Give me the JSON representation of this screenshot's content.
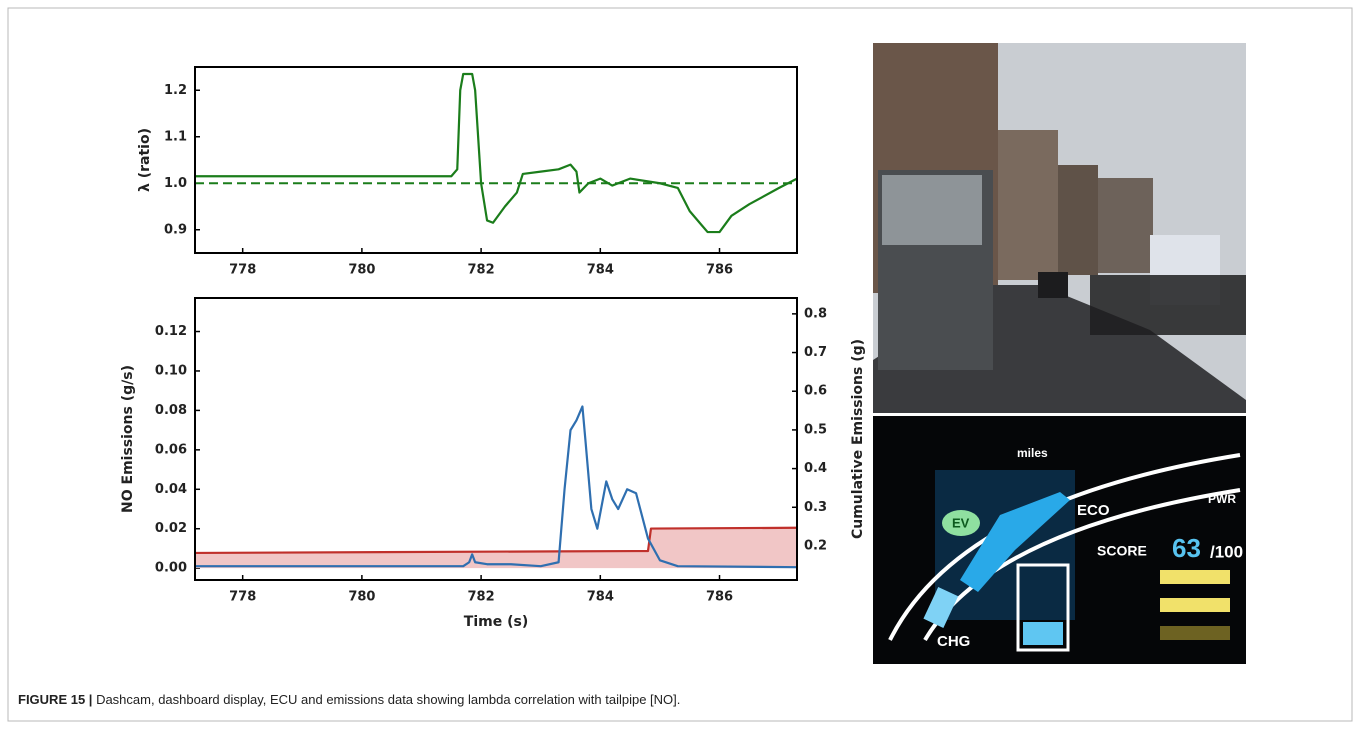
{
  "chart_data": [
    {
      "type": "line",
      "ylabel": "λ (ratio)",
      "xlim": [
        777.2,
        787.3
      ],
      "xticks": [
        778,
        780,
        782,
        784,
        786
      ],
      "ylim": [
        0.85,
        1.25
      ],
      "yticks": [
        {
          "value": 0.9,
          "label": "0.9"
        },
        {
          "value": 1.0,
          "label": "1.0"
        },
        {
          "value": 1.1,
          "label": "1.1"
        },
        {
          "value": 1.2,
          "label": "1.2"
        }
      ],
      "hline": {
        "value": 1.0,
        "color": "#1b7d1b",
        "dashed": true
      },
      "series": [
        {
          "color": "#1b7d1b",
          "x": [
            777.2,
            781.5,
            781.6,
            781.65,
            781.7,
            781.85,
            781.9,
            782.0,
            782.1,
            782.2,
            782.4,
            782.6,
            782.7,
            783.0,
            783.3,
            783.5,
            783.6,
            783.65,
            783.8,
            784.0,
            784.2,
            784.5,
            785.0,
            785.3,
            785.5,
            785.7,
            785.8,
            786.0,
            786.2,
            786.5,
            787.0,
            787.3
          ],
          "values": [
            1.015,
            1.015,
            1.03,
            1.2,
            1.235,
            1.235,
            1.2,
            1.0,
            0.92,
            0.915,
            0.95,
            0.98,
            1.02,
            1.025,
            1.03,
            1.04,
            1.025,
            0.98,
            1.0,
            1.01,
            0.995,
            1.01,
            1.0,
            0.99,
            0.94,
            0.91,
            0.895,
            0.895,
            0.93,
            0.955,
            0.99,
            1.01
          ]
        }
      ]
    },
    {
      "type": "line",
      "xlabel": "Time (s)",
      "ylabel": "NO Emissions (g/s)",
      "y2label": "Cumulative Emissions (g)",
      "xlim": [
        777.2,
        787.3
      ],
      "xticks": [
        778,
        780,
        782,
        784,
        786
      ],
      "ylim": [
        -0.006,
        0.137
      ],
      "yticks": [
        {
          "value": 0.0,
          "label": "0.00"
        },
        {
          "value": 0.02,
          "label": "0.02"
        },
        {
          "value": 0.04,
          "label": "0.04"
        },
        {
          "value": 0.06,
          "label": "0.06"
        },
        {
          "value": 0.08,
          "label": "0.08"
        },
        {
          "value": 0.1,
          "label": "0.10"
        },
        {
          "value": 0.12,
          "label": "0.12"
        }
      ],
      "y2lim": [
        0.112,
        0.841
      ],
      "y2ticks": [
        {
          "value": 0.2,
          "label": "0.2"
        },
        {
          "value": 0.3,
          "label": "0.3"
        },
        {
          "value": 0.4,
          "label": "0.4"
        },
        {
          "value": 0.5,
          "label": "0.5"
        },
        {
          "value": 0.6,
          "label": "0.6"
        },
        {
          "value": 0.7,
          "label": "0.7"
        },
        {
          "value": 0.8,
          "label": "0.8"
        }
      ],
      "series": [
        {
          "color": "#c0302b",
          "fill": "#f1c6c6",
          "axis": "y2",
          "x": [
            777.2,
            783.3,
            784.8,
            784.85,
            787.3
          ],
          "values": [
            0.182,
            0.186,
            0.187,
            0.245,
            0.247
          ]
        },
        {
          "color": "#2f6fb0",
          "x": [
            777.2,
            781.7,
            781.8,
            781.85,
            781.9,
            782.1,
            782.5,
            783.0,
            783.3,
            783.4,
            783.5,
            783.6,
            783.7,
            783.75,
            783.85,
            783.95,
            784.1,
            784.2,
            784.3,
            784.45,
            784.6,
            784.8,
            785.0,
            785.3,
            787.3
          ],
          "values": [
            0.001,
            0.001,
            0.003,
            0.007,
            0.003,
            0.002,
            0.002,
            0.001,
            0.003,
            0.04,
            0.07,
            0.075,
            0.082,
            0.065,
            0.03,
            0.02,
            0.044,
            0.035,
            0.03,
            0.04,
            0.038,
            0.015,
            0.004,
            0.001,
            0.0005
          ]
        }
      ]
    }
  ],
  "dashboard": {
    "miles": "miles",
    "ev": "EV",
    "eco": "ECO",
    "pwr": "PWR",
    "score": "SCORE",
    "score_value": "63",
    "score_max": "/100",
    "chg": "CHG"
  },
  "caption": {
    "label": "FIGURE 15 |",
    "text": "Dashcam, dashboard display, ECU and emissions data showing lambda correlation with tailpipe [NO]."
  }
}
